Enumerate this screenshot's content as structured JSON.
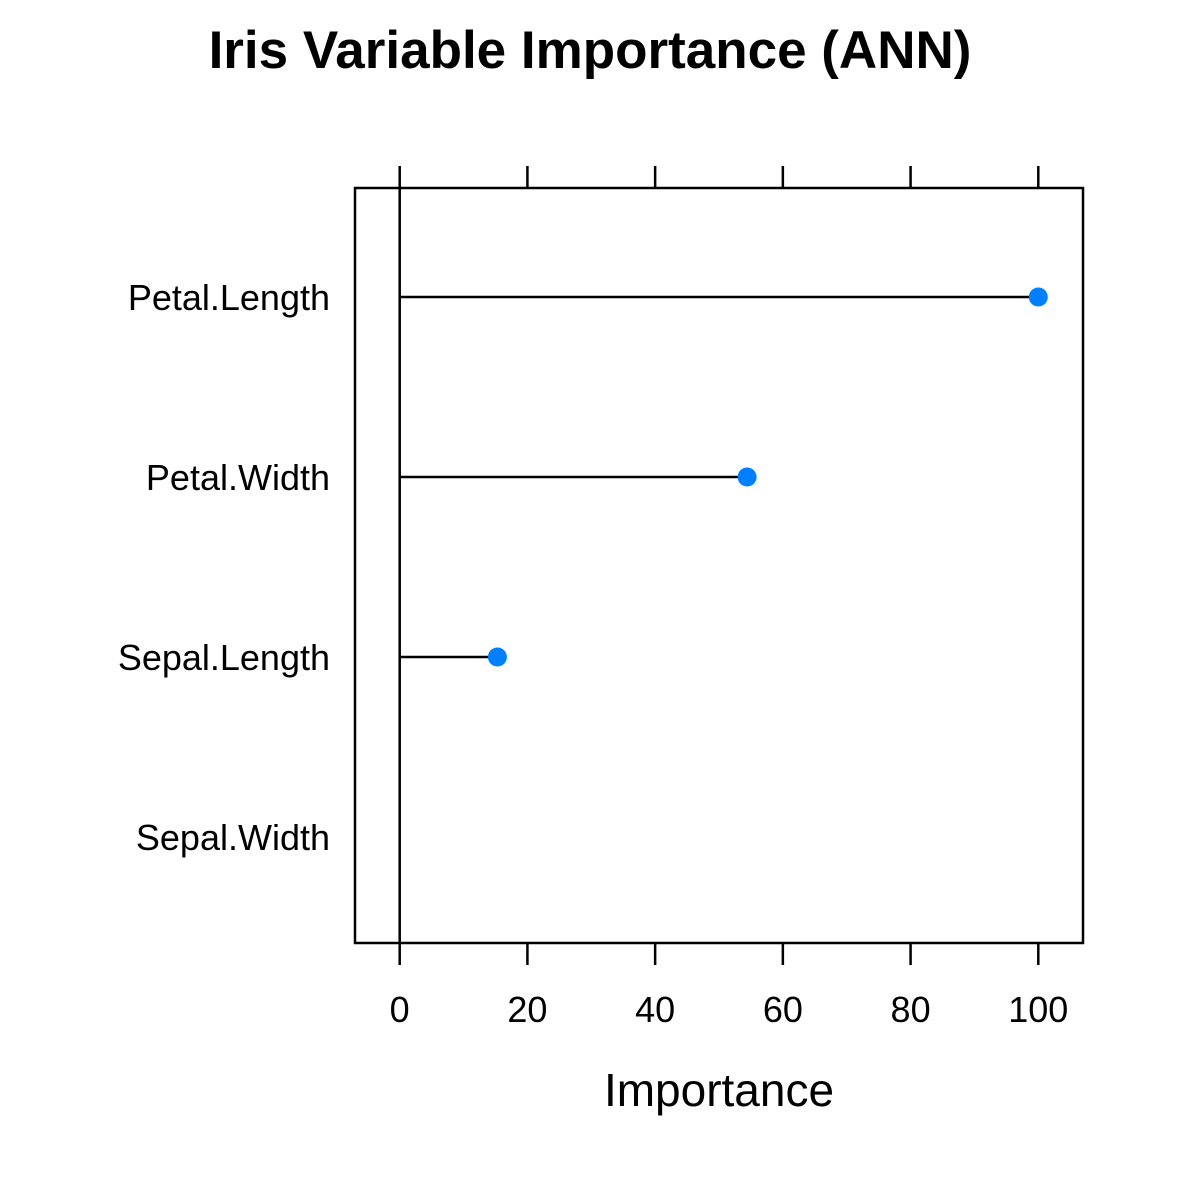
{
  "chart_data": {
    "type": "scatter",
    "title": "Iris Variable Importance (ANN)",
    "xlabel": "Importance",
    "ylabel": "",
    "xlim": [
      -7,
      107
    ],
    "x_ticks": [
      0,
      20,
      40,
      60,
      80,
      100
    ],
    "x_tick_labels": [
      "0",
      "20",
      "40",
      "60",
      "80",
      "100"
    ],
    "categories": [
      "Petal.Length",
      "Petal.Width",
      "Sepal.Length",
      "Sepal.Width"
    ],
    "values": [
      100,
      54.4,
      15.3,
      0
    ],
    "reference_line_x": 0,
    "grid": false,
    "legend": "none",
    "point_color": "#0080FF",
    "line_color": "#000000"
  }
}
